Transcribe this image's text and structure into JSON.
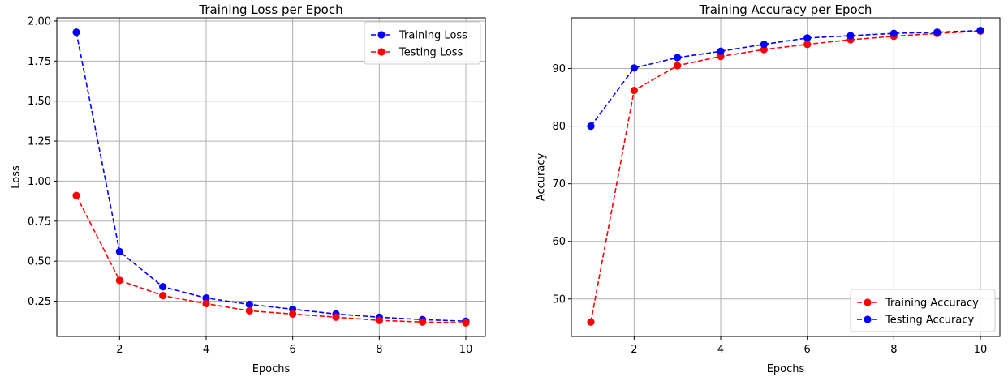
{
  "chart_data": [
    {
      "type": "line",
      "title": "Training Loss per Epoch",
      "xlabel": "Epochs",
      "ylabel": "Loss",
      "xlim": [
        0.55,
        10.45
      ],
      "ylim": [
        0.03,
        2.02
      ],
      "xticks": [
        2,
        4,
        6,
        8,
        10
      ],
      "xtick_labels": [
        "2",
        "4",
        "6",
        "8",
        "10"
      ],
      "yticks": [
        0.25,
        0.5,
        0.75,
        1.0,
        1.25,
        1.5,
        1.75,
        2.0
      ],
      "ytick_labels": [
        "0.25",
        "0.50",
        "0.75",
        "1.00",
        "1.25",
        "1.50",
        "1.75",
        "2.00"
      ],
      "grid": true,
      "legend_position": "top-right",
      "x": [
        1,
        2,
        3,
        4,
        5,
        6,
        7,
        8,
        9,
        10
      ],
      "series": [
        {
          "name": "Training Loss",
          "color": "#0000ff",
          "values": [
            1.93,
            0.56,
            0.34,
            0.27,
            0.23,
            0.2,
            0.17,
            0.15,
            0.135,
            0.125
          ]
        },
        {
          "name": "Testing Loss",
          "color": "#ff0000",
          "values": [
            0.91,
            0.38,
            0.285,
            0.235,
            0.19,
            0.17,
            0.15,
            0.13,
            0.12,
            0.115
          ]
        }
      ]
    },
    {
      "type": "line",
      "title": "Training Accuracy per Epoch",
      "xlabel": "Epochs",
      "ylabel": "Accuracy",
      "xlim": [
        0.55,
        10.45
      ],
      "ylim": [
        43.5,
        98.8
      ],
      "xticks": [
        2,
        4,
        6,
        8,
        10
      ],
      "xtick_labels": [
        "2",
        "4",
        "6",
        "8",
        "10"
      ],
      "yticks": [
        50,
        60,
        70,
        80,
        90
      ],
      "ytick_labels": [
        "50",
        "60",
        "70",
        "80",
        "90"
      ],
      "grid": true,
      "legend_position": "bottom-right",
      "x": [
        1,
        2,
        3,
        4,
        5,
        6,
        7,
        8,
        9,
        10
      ],
      "series": [
        {
          "name": "Training Accuracy",
          "color": "#ff0000",
          "values": [
            46.0,
            86.2,
            90.5,
            92.1,
            93.3,
            94.2,
            95.0,
            95.6,
            96.1,
            96.5
          ]
        },
        {
          "name": "Testing Accuracy",
          "color": "#0000ff",
          "values": [
            80.0,
            90.1,
            91.9,
            93.0,
            94.2,
            95.3,
            95.7,
            96.1,
            96.3,
            96.6
          ]
        }
      ]
    }
  ]
}
